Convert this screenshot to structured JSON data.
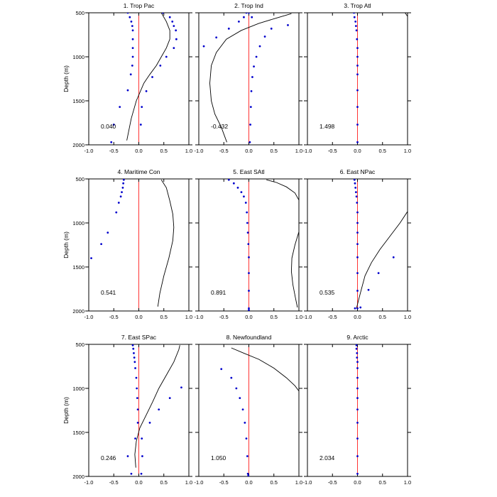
{
  "figure": {
    "ylabel": "Depth (m)",
    "colors": {
      "axis": "#000000",
      "zero_line": "#ff3333",
      "curve": "#000000",
      "dots": "#0000cc"
    }
  },
  "chart_data": [
    {
      "type": "line",
      "title": "1. Trop Pac",
      "value_label": "0.040",
      "xlim": [
        -1,
        1
      ],
      "ylim": [
        2000,
        500
      ],
      "x_ticks": [
        "-1.0",
        "-0.5",
        "0.0",
        "0.5",
        "1.0"
      ],
      "y_ticks": [
        "500",
        "1000",
        "1500",
        "2000"
      ],
      "series": [
        {
          "kind": "curve",
          "x": [
            0.45,
            0.55,
            0.62,
            0.62,
            0.55,
            0.45,
            0.35,
            0.22,
            0.1,
            -0.05,
            -0.15,
            -0.24
          ],
          "y": [
            500,
            600,
            700,
            800,
            900,
            1000,
            1100,
            1200,
            1300,
            1500,
            1700,
            1950
          ]
        },
        {
          "kind": "dots",
          "x": [
            -0.22,
            -0.18,
            -0.15,
            -0.13,
            -0.12,
            -0.12,
            -0.12,
            -0.12,
            -0.13,
            -0.16,
            -0.22,
            -0.38,
            -0.5,
            -0.55
          ],
          "y": [
            500,
            550,
            600,
            650,
            700,
            800,
            900,
            1000,
            1100,
            1200,
            1380,
            1570,
            1770,
            1970
          ]
        },
        {
          "kind": "dots",
          "x": [
            0.48,
            0.62,
            0.67,
            0.7,
            0.74,
            0.75,
            0.7,
            0.55,
            0.43,
            0.27,
            0.15,
            0.06,
            0.04
          ],
          "y": [
            500,
            550,
            600,
            650,
            700,
            800,
            900,
            1000,
            1100,
            1230,
            1390,
            1570,
            1770
          ]
        }
      ]
    },
    {
      "type": "line",
      "title": "2. Trop Ind",
      "value_label": "-0.432",
      "xlim": [
        -1,
        1
      ],
      "ylim": [
        2000,
        500
      ],
      "x_ticks": [
        "-1.0",
        "-0.5",
        "0.0",
        "0.5",
        "1.0"
      ],
      "y_ticks": [
        "500",
        "1000",
        "1500",
        "2000"
      ],
      "series": [
        {
          "kind": "curve",
          "x": [
            0.85,
            0.55,
            0.2,
            -0.15,
            -0.45,
            -0.65,
            -0.75,
            -0.78,
            -0.75,
            -0.68,
            -0.55,
            -0.44
          ],
          "y": [
            510,
            560,
            620,
            700,
            800,
            950,
            1100,
            1300,
            1500,
            1650,
            1800,
            1970
          ]
        },
        {
          "kind": "dots",
          "x": [
            -0.05,
            -0.1,
            -0.2,
            -0.4,
            -0.65,
            -0.9
          ],
          "y": [
            500,
            550,
            600,
            680,
            780,
            880
          ]
        },
        {
          "kind": "dots",
          "x": [
            0.0,
            0.06,
            0.78,
            0.45,
            0.32,
            0.22,
            0.15,
            0.1,
            0.07,
            0.05,
            0.04,
            0.03,
            0.02
          ],
          "y": [
            500,
            550,
            640,
            680,
            770,
            880,
            1000,
            1110,
            1230,
            1390,
            1570,
            1770,
            1970
          ]
        }
      ]
    },
    {
      "type": "line",
      "title": "3. Trop Atl",
      "value_label": "1.498",
      "xlim": [
        -1,
        1
      ],
      "ylim": [
        2000,
        500
      ],
      "x_ticks": [
        "-1.0",
        "-0.5",
        "0.0",
        "0.5",
        "1.0"
      ],
      "y_ticks": [
        "500",
        "1000",
        "1500",
        "2000"
      ],
      "series": [
        {
          "kind": "curve",
          "x": [
            0.95,
            1.0
          ],
          "y": [
            500,
            540
          ]
        },
        {
          "kind": "dots",
          "x": [
            -0.07,
            -0.06,
            -0.04,
            -0.03,
            -0.02,
            -0.01,
            0,
            0,
            0,
            0,
            0,
            0,
            0,
            0
          ],
          "y": [
            500,
            550,
            600,
            650,
            700,
            800,
            900,
            1000,
            1100,
            1200,
            1380,
            1570,
            1770,
            1970
          ]
        }
      ]
    },
    {
      "type": "line",
      "title": "4. Maritime Con",
      "value_label": "0.541",
      "xlim": [
        -1,
        1
      ],
      "ylim": [
        2000,
        500
      ],
      "x_ticks": [
        "-1.0",
        "-0.5",
        "0.0",
        "0.5",
        "1.0"
      ],
      "y_ticks": [
        "500",
        "1000",
        "1500",
        "2000"
      ],
      "series": [
        {
          "kind": "curve",
          "x": [
            0.45,
            0.55,
            0.62,
            0.68,
            0.7,
            0.68,
            0.6,
            0.5,
            0.42,
            0.38
          ],
          "y": [
            510,
            600,
            750,
            900,
            1050,
            1200,
            1400,
            1600,
            1800,
            1950
          ]
        },
        {
          "kind": "dots",
          "x": [
            -0.3,
            -0.31,
            -0.32,
            -0.34,
            -0.36,
            -0.4,
            -0.45,
            -0.62,
            -0.75,
            -0.95
          ],
          "y": [
            510,
            550,
            600,
            650,
            700,
            770,
            880,
            1110,
            1240,
            1400
          ]
        }
      ]
    },
    {
      "type": "line",
      "title": "5. East SAtl",
      "value_label": "0.891",
      "xlim": [
        -1,
        1
      ],
      "ylim": [
        2000,
        500
      ],
      "x_ticks": [
        "-1.0",
        "-0.5",
        "0.0",
        "0.5",
        "1.0"
      ],
      "y_ticks": [
        "500",
        "1000",
        "1500",
        "2000"
      ],
      "series": [
        {
          "kind": "curve",
          "x": [
            0.35,
            0.55,
            0.75,
            0.92,
            1.0
          ],
          "y": [
            510,
            540,
            590,
            660,
            740
          ]
        },
        {
          "kind": "curve",
          "x": [
            1.0,
            0.92,
            0.86,
            0.85,
            0.88,
            0.93,
            0.97
          ],
          "y": [
            1100,
            1250,
            1400,
            1550,
            1700,
            1850,
            1960
          ]
        },
        {
          "kind": "dots",
          "x": [
            -0.4,
            -0.3,
            -0.22,
            -0.15,
            -0.1,
            -0.06,
            -0.04,
            -0.03,
            -0.02,
            -0.01,
            0,
            0,
            0,
            0,
            0
          ],
          "y": [
            510,
            550,
            600,
            650,
            700,
            770,
            880,
            1000,
            1110,
            1240,
            1390,
            1570,
            1770,
            1970,
            1990
          ]
        }
      ]
    },
    {
      "type": "line",
      "title": "6. East NPac",
      "value_label": "0.535",
      "xlim": [
        -1,
        1
      ],
      "ylim": [
        2000,
        500
      ],
      "x_ticks": [
        "-1.0",
        "-0.5",
        "0.0",
        "0.5",
        "1.0"
      ],
      "y_ticks": [
        "500",
        "1000",
        "1500",
        "2000"
      ],
      "series": [
        {
          "kind": "curve",
          "x": [
            1.0,
            0.85,
            0.65,
            0.45,
            0.28,
            0.15,
            0.08,
            0.02,
            -0.02
          ],
          "y": [
            870,
            1000,
            1150,
            1300,
            1450,
            1600,
            1750,
            1880,
            1970
          ]
        },
        {
          "kind": "dots",
          "x": [
            -0.06,
            -0.05,
            -0.04,
            -0.03,
            -0.02,
            -0.01,
            0,
            0,
            0,
            0,
            0,
            0,
            0,
            0
          ],
          "y": [
            510,
            550,
            600,
            650,
            700,
            770,
            880,
            1000,
            1110,
            1240,
            1390,
            1570,
            1770,
            1970
          ]
        },
        {
          "kind": "dots",
          "x": [
            0.72,
            0.42,
            0.22,
            0.06,
            -0.05
          ],
          "y": [
            1390,
            1570,
            1760,
            1960,
            1970
          ]
        }
      ]
    },
    {
      "type": "line",
      "title": "7. East SPac",
      "value_label": "0.246",
      "xlim": [
        -1,
        1
      ],
      "ylim": [
        2000,
        500
      ],
      "x_ticks": [
        "-1.0",
        "-0.5",
        "0.0",
        "0.5",
        "1.0"
      ],
      "y_ticks": [
        "500",
        "1000",
        "1500",
        "2000"
      ],
      "series": [
        {
          "kind": "curve",
          "x": [
            0.82,
            0.8,
            0.7,
            0.55,
            0.4,
            0.28,
            0.15,
            0.02,
            -0.05,
            -0.08,
            -0.06
          ],
          "y": [
            510,
            560,
            700,
            850,
            1000,
            1150,
            1300,
            1450,
            1600,
            1750,
            1900
          ]
        },
        {
          "kind": "dots",
          "x": [
            -0.12,
            -0.11,
            -0.1,
            -0.09,
            -0.08,
            -0.07,
            -0.05,
            -0.04,
            -0.03,
            -0.02,
            -0.02,
            -0.07,
            -0.22,
            -0.15
          ],
          "y": [
            510,
            550,
            600,
            650,
            700,
            770,
            880,
            1000,
            1110,
            1240,
            1390,
            1570,
            1770,
            1970
          ]
        },
        {
          "kind": "dots",
          "x": [
            0.85,
            0.62,
            0.4,
            0.22,
            0.06,
            0.07,
            0.05
          ],
          "y": [
            990,
            1110,
            1240,
            1390,
            1570,
            1770,
            1970
          ]
        }
      ]
    },
    {
      "type": "line",
      "title": "8. Newfoundland",
      "value_label": "1.050",
      "xlim": [
        -1,
        1
      ],
      "ylim": [
        2000,
        500
      ],
      "x_ticks": [
        "-1.0",
        "-0.5",
        "0.0",
        "0.5",
        "1.0"
      ],
      "y_ticks": [
        "500",
        "1000",
        "1500",
        "2000"
      ],
      "series": [
        {
          "kind": "curve",
          "x": [
            -0.35,
            -0.1,
            0.2,
            0.5,
            0.75,
            0.92,
            1.0
          ],
          "y": [
            540,
            600,
            670,
            770,
            880,
            970,
            1030
          ]
        },
        {
          "kind": "dots",
          "x": [
            -0.55,
            -0.35,
            -0.25,
            -0.18,
            -0.12,
            -0.08,
            -0.05,
            -0.03,
            -0.02,
            -0.01
          ],
          "y": [
            780,
            880,
            1000,
            1110,
            1240,
            1390,
            1570,
            1770,
            1970,
            1990
          ]
        }
      ]
    },
    {
      "type": "line",
      "title": "9. Arctic",
      "value_label": "2.034",
      "xlim": [
        -1,
        1
      ],
      "ylim": [
        2000,
        500
      ],
      "x_ticks": [
        "-1.0",
        "-0.5",
        "0.0",
        "0.5",
        "1.0"
      ],
      "y_ticks": [
        "500",
        "1000",
        "1500",
        "2000"
      ],
      "series": [
        {
          "kind": "dots",
          "x": [
            -0.02,
            -0.02,
            -0.01,
            -0.01,
            0,
            0,
            0,
            0,
            0,
            0,
            0,
            0,
            0,
            0
          ],
          "y": [
            510,
            550,
            600,
            650,
            700,
            770,
            880,
            1000,
            1110,
            1240,
            1390,
            1570,
            1770,
            1970
          ]
        }
      ]
    }
  ]
}
